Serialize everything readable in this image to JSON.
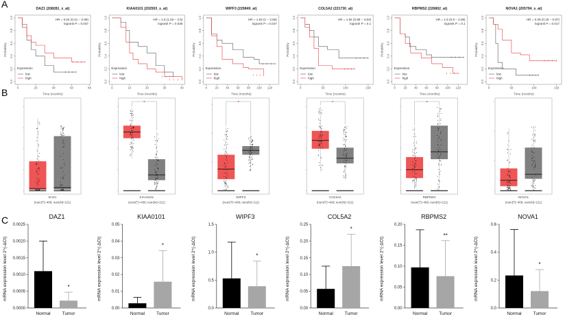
{
  "panel_labels": [
    "A",
    "B",
    "C"
  ],
  "colors": {
    "high": "#e8383d",
    "low": "#555555",
    "tumor_box": "#f05555",
    "normal_box": "#808080",
    "bar_normal": "#000000",
    "bar_tumor": "#a6a6a6"
  },
  "chart_data": [
    {
      "panel": "A",
      "type": "line",
      "ylabel": "Probability",
      "xlabel": "Time (months)",
      "legend_title": "Expression",
      "legend": [
        "low",
        "high"
      ],
      "legend_placement": "bottom-left",
      "ylim": [
        0,
        1
      ],
      "yticks": [
        "0.0",
        "0.2",
        "0.4",
        "0.6",
        "0.8",
        "1.0"
      ],
      "plots": [
        {
          "title": "DAZ1 (208281_x_at)",
          "hr": "HR = 0.64 (0.41 − 0.98)",
          "p": "logrank P = 0.037",
          "xlim": [
            0,
            78
          ],
          "xticks": [
            0,
            20,
            40,
            60,
            80
          ],
          "low": [
            [
              0,
              1
            ],
            [
              5,
              0.85
            ],
            [
              10,
              0.65
            ],
            [
              15,
              0.5
            ],
            [
              20,
              0.4
            ],
            [
              30,
              0.25
            ],
            [
              40,
              0.15
            ],
            [
              65,
              0.15
            ]
          ],
          "high": [
            [
              0,
              1
            ],
            [
              5,
              0.9
            ],
            [
              10,
              0.72
            ],
            [
              15,
              0.62
            ],
            [
              20,
              0.57
            ],
            [
              30,
              0.45
            ],
            [
              40,
              0.37
            ],
            [
              60,
              0.31
            ],
            [
              75,
              0.31
            ]
          ]
        },
        {
          "title": "KIAA0101 (202503_s_at)",
          "hr": "HR = 1.6 (1.03 − 2.5)",
          "p": "logrank P = 0.036",
          "xlim": [
            0,
            40
          ],
          "xticks": [
            0,
            10,
            20,
            30,
            40
          ],
          "low": [
            [
              0,
              1
            ],
            [
              5,
              0.93
            ],
            [
              8,
              0.8
            ],
            [
              10,
              0.62
            ],
            [
              15,
              0.55
            ],
            [
              20,
              0.45
            ],
            [
              25,
              0.25
            ],
            [
              30,
              0.15
            ],
            [
              35,
              0.08
            ]
          ],
          "high": [
            [
              0,
              1
            ],
            [
              5,
              0.85
            ],
            [
              8,
              0.62
            ],
            [
              10,
              0.45
            ],
            [
              12,
              0.35
            ],
            [
              15,
              0.28
            ],
            [
              20,
              0.2
            ],
            [
              25,
              0.15
            ],
            [
              30,
              0.08
            ],
            [
              40,
              0.03
            ]
          ]
        },
        {
          "title": "WIPF3 (229849_at)",
          "hr": "HR = 1.63 (1 − 2.66)",
          "p": "logrank P = 0.047",
          "xlim": [
            0,
            132
          ],
          "xticks": [
            0,
            20,
            40,
            60,
            80,
            100,
            120
          ],
          "low": [
            [
              0,
              1
            ],
            [
              10,
              0.75
            ],
            [
              20,
              0.65
            ],
            [
              30,
              0.6
            ],
            [
              50,
              0.5
            ],
            [
              70,
              0.38
            ],
            [
              90,
              0.35
            ],
            [
              100,
              0.28
            ],
            [
              130,
              0.28
            ]
          ],
          "high": [
            [
              0,
              1
            ],
            [
              10,
              0.72
            ],
            [
              20,
              0.55
            ],
            [
              30,
              0.35
            ],
            [
              50,
              0.28
            ],
            [
              70,
              0.22
            ],
            [
              80,
              0.2
            ],
            [
              105,
              0.2
            ],
            [
              108,
              0.1
            ]
          ]
        },
        {
          "title": "COL5A2 (221730_at)",
          "hr": "HR = 1.84 (0.88 − 3.84)",
          "p": "logrank P = 0.1",
          "xlim": [
            0,
            155
          ],
          "xticks": [
            0,
            50,
            100,
            150
          ],
          "low": [
            [
              0,
              1
            ],
            [
              10,
              0.9
            ],
            [
              20,
              0.8
            ],
            [
              30,
              0.7
            ],
            [
              40,
              0.55
            ],
            [
              60,
              0.5
            ],
            [
              85,
              0.37
            ],
            [
              150,
              0.37
            ]
          ],
          "high": [
            [
              0,
              1
            ],
            [
              10,
              0.85
            ],
            [
              20,
              0.7
            ],
            [
              30,
              0.52
            ],
            [
              40,
              0.25
            ],
            [
              70,
              0.2
            ],
            [
              120,
              0.2
            ]
          ]
        },
        {
          "title": "RBPMS2 (226802_at)",
          "hr": "HR = 1.6 (0.9 − 2.85)",
          "p": "logrank P = 0.1",
          "xlim": [
            0,
            132
          ],
          "xticks": [
            0,
            20,
            40,
            60,
            80,
            100,
            120
          ],
          "low": [
            [
              0,
              1
            ],
            [
              10,
              0.75
            ],
            [
              20,
              0.7
            ],
            [
              28,
              0.55
            ],
            [
              40,
              0.5
            ],
            [
              60,
              0.42
            ],
            [
              70,
              0.38
            ],
            [
              130,
              0.38
            ]
          ],
          "high": [
            [
              0,
              1
            ],
            [
              10,
              0.75
            ],
            [
              20,
              0.6
            ],
            [
              30,
              0.45
            ],
            [
              50,
              0.37
            ],
            [
              70,
              0.28
            ],
            [
              90,
              0.22
            ],
            [
              110,
              0.13
            ],
            [
              120,
              0.13
            ]
          ]
        },
        {
          "title": "NOVA1 (205794_s_at)",
          "hr": "HR = 0.39 (0.18 − 0.87)",
          "p": "logrank P = 0.017",
          "xlim": [
            0,
            155
          ],
          "xticks": [
            0,
            50,
            100,
            150
          ],
          "low": [
            [
              0,
              1
            ],
            [
              10,
              0.9
            ],
            [
              15,
              0.6
            ],
            [
              20,
              0.3
            ],
            [
              30,
              0.2
            ],
            [
              60,
              0.1
            ],
            [
              110,
              0.1
            ]
          ],
          "high": [
            [
              0,
              1
            ],
            [
              10,
              0.9
            ],
            [
              20,
              0.82
            ],
            [
              30,
              0.65
            ],
            [
              50,
              0.45
            ],
            [
              70,
              0.42
            ],
            [
              90,
              0.33
            ],
            [
              150,
              0.33
            ]
          ]
        }
      ]
    },
    {
      "panel": "B",
      "type": "box",
      "groups": [
        "Tumor",
        "Normal"
      ],
      "plots": [
        {
          "gene": "DAZ1",
          "n": "(num(T)=408; num(N)=211)",
          "ylim": [
            0,
            8.5
          ],
          "significant": false,
          "tumor": {
            "min": 0,
            "q1": 0.1,
            "median": 0.2,
            "q3": 2.8,
            "max": 6.9
          },
          "normal": {
            "min": 0,
            "q1": 0.1,
            "median": 0.3,
            "q3": 5.2,
            "max": 6.2
          }
        },
        {
          "gene": "KIAA0101",
          "n": "(num(T)=408; num(N)=211)",
          "ylim": [
            0,
            8.5
          ],
          "significant": true,
          "tumor": {
            "min": 3.1,
            "q1": 5.0,
            "median": 5.6,
            "q3": 6.2,
            "max": 7.9
          },
          "normal": {
            "min": 0,
            "q1": 1.0,
            "median": 1.5,
            "q3": 3.0,
            "max": 5.6
          }
        },
        {
          "gene": "WIPF3",
          "n": "(num(T)=408; num(N)=211)",
          "ylim": [
            0,
            6.2
          ],
          "significant": true,
          "tumor": {
            "min": 0,
            "q1": 0.8,
            "median": 1.5,
            "q3": 2.5,
            "max": 4.4
          },
          "normal": {
            "min": 1.4,
            "q1": 2.5,
            "median": 2.8,
            "q3": 3.1,
            "max": 3.8
          }
        },
        {
          "gene": "COL5A2",
          "n": "(num(T)=408; num(N)=211)",
          "ylim": [
            0,
            8.5
          ],
          "significant": true,
          "tumor": {
            "min": 1.8,
            "q1": 4.0,
            "median": 4.8,
            "q3": 5.7,
            "max": 8.0
          },
          "normal": {
            "min": 1.0,
            "q1": 2.6,
            "median": 3.1,
            "q3": 4.1,
            "max": 6.2
          }
        },
        {
          "gene": "RBPMS2",
          "n": "(num(T)=408; num(N)=211)",
          "ylim": [
            0,
            8.5
          ],
          "significant": true,
          "tumor": {
            "min": 0.2,
            "q1": 1.2,
            "median": 2.0,
            "q3": 3.2,
            "max": 6.1
          },
          "normal": {
            "min": 0,
            "q1": 3.0,
            "median": 3.7,
            "q3": 6.2,
            "max": 8.0
          }
        },
        {
          "gene": "NOVA1",
          "n": "(num(T)=408; num(N)=211)",
          "ylim": [
            0,
            6
          ],
          "significant": false,
          "tumor": {
            "min": 0,
            "q1": 0.3,
            "median": 0.7,
            "q3": 1.5,
            "max": 4.2
          },
          "normal": {
            "min": 0,
            "q1": 0.8,
            "median": 1.1,
            "q3": 2.9,
            "max": 4.4
          }
        }
      ]
    },
    {
      "panel": "C",
      "type": "bar",
      "categories": [
        "Normal",
        "Tumor"
      ],
      "ylabel": "mRNA expression level 2^(-ΔCt)",
      "plots": [
        {
          "title": "DAZ1",
          "values": [
            0.0011,
            0.00022
          ],
          "errors": [
            0.002,
            0.00047
          ],
          "sig": "*",
          "ylim": [
            0,
            0.0025
          ],
          "yticks": [
            "0.0000",
            "0.0005",
            "0.0010",
            "0.0015",
            "0.0020",
            "0.0025"
          ]
        },
        {
          "title": "KIAA0101",
          "values": [
            0.0028,
            0.0157
          ],
          "errors": [
            0.0064,
            0.0342
          ],
          "sig": "*",
          "ylim": [
            0,
            0.05
          ],
          "yticks": [
            "0.00",
            "0.01",
            "0.02",
            "0.03",
            "0.04",
            "0.05"
          ]
        },
        {
          "title": "WIPF3",
          "values": [
            0.53,
            0.39
          ],
          "errors": [
            1.18,
            0.84
          ],
          "sig": "*",
          "ylim": [
            0,
            1.5
          ],
          "yticks": [
            "0.0",
            "0.5",
            "1.0",
            "1.5"
          ]
        },
        {
          "title": "COL5A2",
          "values": [
            0.057,
            0.125
          ],
          "errors": [
            0.125,
            0.22
          ],
          "sig": "*",
          "ylim": [
            0,
            0.25
          ],
          "yticks": [
            "0.00",
            "0.05",
            "0.10",
            "0.15",
            "0.20",
            "0.25"
          ]
        },
        {
          "title": "RBPMS2",
          "values": [
            0.097,
            0.076
          ],
          "errors": [
            0.187,
            0.161
          ],
          "sig": "**",
          "ylim": [
            0,
            0.2
          ],
          "yticks": [
            "0.00",
            "0.05",
            "0.10",
            "0.15",
            "0.20"
          ]
        },
        {
          "title": "NOVA1",
          "values": [
            0.233,
            0.121
          ],
          "errors": [
            0.563,
            0.275
          ],
          "sig": "*",
          "ylim": [
            0,
            0.6
          ],
          "yticks": [
            "0.0",
            "0.2",
            "0.4",
            "0.6"
          ]
        }
      ]
    }
  ]
}
